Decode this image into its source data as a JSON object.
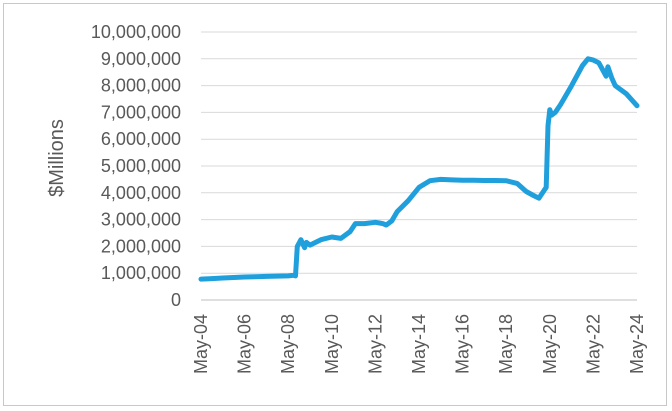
{
  "chart_data": {
    "type": "line",
    "title": "",
    "xlabel": "",
    "ylabel": "$Millions",
    "ylim": [
      0,
      10000000
    ],
    "y_ticks": [
      0,
      1000000,
      2000000,
      3000000,
      4000000,
      5000000,
      6000000,
      7000000,
      8000000,
      9000000,
      10000000
    ],
    "y_tick_labels": [
      "0",
      "1,000,000",
      "2,000,000",
      "3,000,000",
      "4,000,000",
      "5,000,000",
      "6,000,000",
      "7,000,000",
      "8,000,000",
      "9,000,000",
      "10,000,000"
    ],
    "x_tick_labels": [
      "May-04",
      "May-06",
      "May-08",
      "May-10",
      "May-12",
      "May-14",
      "May-16",
      "May-18",
      "May-20",
      "May-22",
      "May-24"
    ],
    "xlim": [
      "May-04",
      "May-24"
    ],
    "grid": true,
    "legend": "none",
    "line_color": "#1f9fdc",
    "grid_color": "#d9d9d9",
    "series": [
      {
        "x": [
          "May-04",
          "Nov-04",
          "May-05",
          "Nov-05",
          "May-06",
          "Nov-06",
          "May-07",
          "Nov-07",
          "May-08",
          "Aug-08",
          "Sep-08",
          "Oct-08",
          "Dec-08",
          "Feb-09",
          "Mar-09",
          "May-09",
          "Nov-09",
          "May-10",
          "Oct-10",
          "Mar-11",
          "Jun-11",
          "Nov-11",
          "May-12",
          "Sep-12",
          "Nov-12",
          "Feb-13",
          "May-13",
          "Nov-13",
          "May-14",
          "Nov-14",
          "May-15",
          "Nov-15",
          "May-16",
          "Nov-16",
          "May-17",
          "Nov-17",
          "May-18",
          "Nov-18",
          "Apr-19",
          "Aug-19",
          "Nov-19",
          "Feb-20",
          "Mar-20",
          "Apr-20",
          "May-20",
          "Jun-20",
          "Aug-20",
          "Nov-20",
          "May-21",
          "Nov-21",
          "Feb-22",
          "May-22",
          "Aug-22",
          "Oct-22",
          "Dec-22",
          "Jan-23",
          "Mar-23",
          "May-23",
          "Nov-23",
          "May-24"
        ],
        "values": [
          780000,
          800000,
          820000,
          840000,
          860000,
          870000,
          880000,
          890000,
          900000,
          920000,
          900000,
          2000000,
          2250000,
          1950000,
          2150000,
          2050000,
          2250000,
          2350000,
          2300000,
          2550000,
          2850000,
          2850000,
          2900000,
          2850000,
          2800000,
          2950000,
          3300000,
          3700000,
          4200000,
          4450000,
          4500000,
          4480000,
          4470000,
          4470000,
          4460000,
          4460000,
          4450000,
          4350000,
          4050000,
          3900000,
          3800000,
          4100000,
          4200000,
          6500000,
          7100000,
          6900000,
          7000000,
          7300000,
          8000000,
          8750000,
          9000000,
          8950000,
          8850000,
          8600000,
          8350000,
          8700000,
          8300000,
          8000000,
          7700000,
          7250000
        ]
      }
    ]
  }
}
